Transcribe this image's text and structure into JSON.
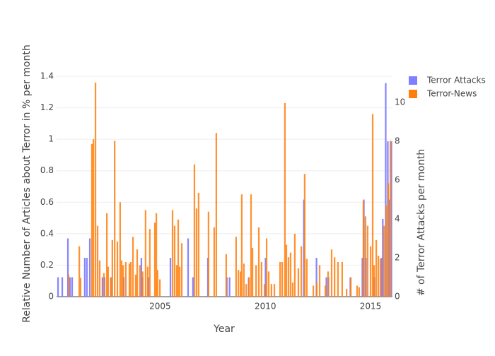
{
  "chart_data": {
    "type": "bar",
    "x_label": "Year",
    "y_label": "Relative Number of Articles about Terror in % per month",
    "y2_label": "# of Terror Attacks per month",
    "xlim": [
      2000.08,
      2016.04
    ],
    "xticks": [
      2005,
      2010,
      2015
    ],
    "ylim": [
      0,
      1.4
    ],
    "yticks": [
      0,
      0.2,
      0.4,
      0.6,
      0.8,
      1,
      1.2,
      1.4
    ],
    "y2lim": [
      0,
      11.35
    ],
    "y2ticks": [
      0,
      2,
      4,
      6,
      8,
      10
    ],
    "grid": true,
    "legend": "top-right",
    "series": [
      {
        "name": "Terror Attacks",
        "color": "#7f7fff",
        "axis": "y2",
        "x": [
          2000.15,
          2000.35,
          2000.62,
          2000.72,
          2000.82,
          2001.42,
          2001.52,
          2001.66,
          2002.26,
          2002.36,
          2002.66,
          2003.27,
          2004.11,
          2004.17,
          2004.44,
          2005.49,
          2006.33,
          2006.56,
          2007.27,
          2008.17,
          2008.3,
          2009.21,
          2010.01,
          2011.83,
          2012.43,
          2012.9,
          2013.0,
          2014.04,
          2014.61,
          2014.68,
          2014.78,
          2015.18,
          2015.52,
          2015.58,
          2015.72,
          2015.82,
          2015.88,
          2015.99
        ],
        "values": [
          1,
          1,
          3,
          1,
          1,
          2,
          2,
          3,
          1,
          1,
          1,
          1,
          2,
          1,
          1,
          2,
          3,
          1,
          2,
          1,
          1,
          1,
          2,
          5,
          2,
          1,
          1,
          1,
          2,
          5,
          2,
          1,
          2,
          4,
          11,
          8,
          5,
          8
        ]
      },
      {
        "name": "Terror-News",
        "color": "#ff7f0e",
        "x": [
          2000.65,
          2001.16,
          2001.22,
          2001.76,
          2001.83,
          2001.93,
          2002.03,
          2002.13,
          2002.33,
          2002.47,
          2002.53,
          2002.66,
          2002.73,
          2002.84,
          2002.97,
          2003.1,
          2003.17,
          2003.24,
          2003.37,
          2003.54,
          2003.61,
          2003.71,
          2003.84,
          2003.91,
          2004.04,
          2004.17,
          2004.31,
          2004.41,
          2004.51,
          2004.75,
          2004.82,
          2004.88,
          2004.99,
          2005.59,
          2005.69,
          2005.79,
          2005.86,
          2005.93,
          2006.03,
          2006.63,
          2006.73,
          2006.83,
          2007.3,
          2007.57,
          2007.67,
          2008.14,
          2008.61,
          2008.72,
          2008.82,
          2008.88,
          2008.98,
          2009.09,
          2009.22,
          2009.32,
          2009.39,
          2009.56,
          2009.69,
          2009.82,
          2009.96,
          2010.06,
          2010.16,
          2010.29,
          2010.43,
          2010.7,
          2010.8,
          2010.93,
          2011.0,
          2011.1,
          2011.2,
          2011.3,
          2011.4,
          2011.57,
          2011.71,
          2011.87,
          2011.97,
          2012.28,
          2012.44,
          2012.58,
          2012.85,
          2012.98,
          2013.15,
          2013.29,
          2013.45,
          2013.65,
          2013.86,
          2014.06,
          2014.36,
          2014.46,
          2014.66,
          2014.76,
          2014.86,
          2015.0,
          2015.1,
          2015.17,
          2015.27,
          2015.37,
          2015.47,
          2015.64,
          2015.74,
          2015.84,
          2015.94
        ],
        "values": [
          0.14,
          0.32,
          0.12,
          0.97,
          1.0,
          1.36,
          0.45,
          0.23,
          0.15,
          0.53,
          0.19,
          0.12,
          0.36,
          0.99,
          0.35,
          0.6,
          0.23,
          0.2,
          0.22,
          0.21,
          0.22,
          0.38,
          0.14,
          0.3,
          0.2,
          0.16,
          0.55,
          0.19,
          0.43,
          0.47,
          0.53,
          0.17,
          0.11,
          0.55,
          0.45,
          0.2,
          0.49,
          0.19,
          0.34,
          0.84,
          0.56,
          0.66,
          0.54,
          0.44,
          1.04,
          0.27,
          0.38,
          0.17,
          0.16,
          0.65,
          0.21,
          0.08,
          0.12,
          0.65,
          0.31,
          0.2,
          0.44,
          0.22,
          0.08,
          0.37,
          0.16,
          0.08,
          0.08,
          0.22,
          0.22,
          1.23,
          0.33,
          0.25,
          0.28,
          0.09,
          0.4,
          0.18,
          0.32,
          0.78,
          0.24,
          0.07,
          0.09,
          0.2,
          0.07,
          0.16,
          0.3,
          0.25,
          0.22,
          0.22,
          0.05,
          0.12,
          0.07,
          0.06,
          0.61,
          0.51,
          0.45,
          0.32,
          1.16,
          0.2,
          0.36,
          0.26,
          0.24,
          0.45,
          0.58,
          0.72,
          0.99
        ]
      }
    ]
  }
}
